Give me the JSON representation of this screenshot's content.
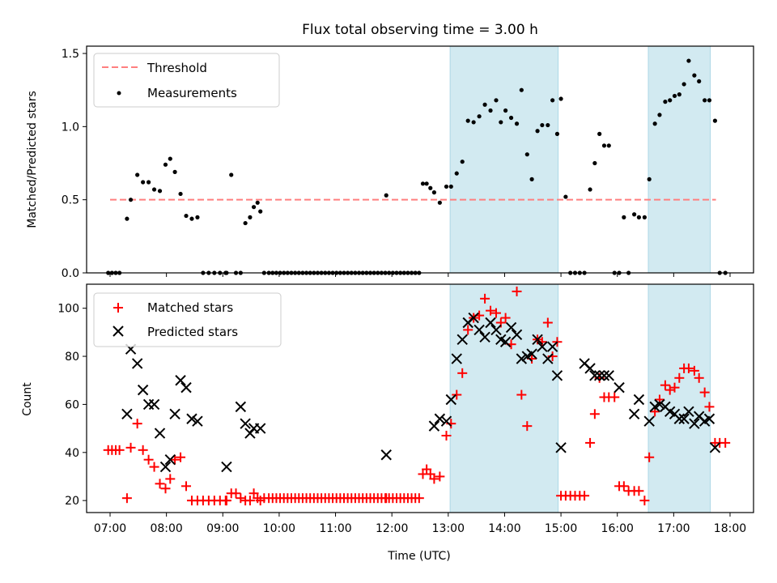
{
  "chart_data": {
    "type": "scatter",
    "title": "Flux total observing time = 3.00 h",
    "xlabel": "Time (UTC)",
    "x_unit": "hours UTC",
    "x_ticks": [
      "07:00",
      "08:00",
      "09:00",
      "10:00",
      "11:00",
      "12:00",
      "13:00",
      "14:00",
      "15:00",
      "16:00",
      "17:00",
      "18:00"
    ],
    "xlim": [
      "06:35",
      "18:25"
    ],
    "shaded_intervals": [
      [
        "13:02",
        "14:57"
      ],
      [
        "16:33",
        "17:39"
      ]
    ],
    "shade_color": "#add8e6",
    "panels": [
      {
        "ylabel": "Matched/Predicted stars",
        "ylim": [
          0,
          1.55
        ],
        "y_ticks": [
          "0.0",
          "0.5",
          "1.0",
          "1.5"
        ],
        "legend_position": "top-left",
        "threshold": {
          "name": "Threshold",
          "y": 0.5,
          "x_range": [
            "07:00",
            "17:45"
          ],
          "color": "#ff7f7f"
        },
        "measurements": {
          "name": "Measurements",
          "color": "#000000",
          "x": [
            "06:58",
            "07:02",
            "07:06",
            "07:10",
            "07:18",
            "07:22",
            "07:29",
            "07:35",
            "07:41",
            "07:47",
            "07:53",
            "07:59",
            "08:04",
            "08:09",
            "08:15",
            "08:21",
            "08:27",
            "08:33",
            "08:39",
            "08:45",
            "08:51",
            "08:57",
            "09:03",
            "09:04",
            "09:09",
            "09:14",
            "09:19",
            "09:24",
            "09:29",
            "09:33",
            "09:37",
            "09:40",
            "09:44",
            "09:49",
            "09:53",
            "09:57",
            "10:01",
            "10:05",
            "10:09",
            "10:13",
            "10:17",
            "10:21",
            "10:25",
            "10:29",
            "10:33",
            "10:37",
            "10:41",
            "10:45",
            "10:49",
            "10:53",
            "10:57",
            "11:01",
            "11:05",
            "11:09",
            "11:13",
            "11:17",
            "11:21",
            "11:25",
            "11:29",
            "11:33",
            "11:37",
            "11:41",
            "11:45",
            "11:49",
            "11:53",
            "11:54",
            "11:57",
            "12:01",
            "12:05",
            "12:09",
            "12:13",
            "12:17",
            "12:21",
            "12:25",
            "12:29",
            "12:33",
            "12:37",
            "12:41",
            "12:45",
            "12:51",
            "12:58",
            "13:03",
            "13:09",
            "13:15",
            "13:21",
            "13:27",
            "13:33",
            "13:39",
            "13:45",
            "13:51",
            "13:56",
            "14:01",
            "14:07",
            "14:13",
            "14:18",
            "14:24",
            "14:29",
            "14:35",
            "14:40",
            "14:46",
            "14:51",
            "14:56",
            "15:00",
            "15:05",
            "15:10",
            "15:15",
            "15:20",
            "15:25",
            "15:31",
            "15:36",
            "15:41",
            "15:46",
            "15:51",
            "15:57",
            "16:02",
            "16:07",
            "16:12",
            "16:18",
            "16:23",
            "16:29",
            "16:34",
            "16:40",
            "16:45",
            "16:51",
            "16:56",
            "17:01",
            "17:06",
            "17:11",
            "17:16",
            "17:22",
            "17:27",
            "17:33",
            "17:38",
            "17:44",
            "17:49",
            "17:55"
          ],
          "y": [
            0,
            0,
            0,
            0,
            0.37,
            0.5,
            0.67,
            0.62,
            0.62,
            0.57,
            0.56,
            0.74,
            0.78,
            0.69,
            0.54,
            0.39,
            0.37,
            0.38,
            0,
            0,
            0,
            0,
            0,
            0,
            0.67,
            0,
            0,
            0.34,
            0.38,
            0.45,
            0.48,
            0.42,
            0,
            0,
            0,
            0,
            0,
            0,
            0,
            0,
            0,
            0,
            0,
            0,
            0,
            0,
            0,
            0,
            0,
            0,
            0,
            0,
            0,
            0,
            0,
            0,
            0,
            0,
            0,
            0,
            0,
            0,
            0,
            0,
            0,
            0.53,
            0,
            0,
            0,
            0,
            0,
            0,
            0,
            0,
            0,
            0.61,
            0.61,
            0.58,
            0.55,
            0.48,
            0.59,
            0.59,
            0.68,
            0.76,
            1.04,
            1.03,
            1.07,
            1.15,
            1.11,
            1.18,
            1.03,
            1.11,
            1.06,
            1.02,
            1.25,
            0.81,
            0.64,
            0.97,
            1.01,
            1.01,
            1.18,
            0.95,
            1.19,
            0.52,
            0,
            0,
            0,
            0,
            0.57,
            0.75,
            0.95,
            0.87,
            0.87,
            0,
            0,
            0.38,
            0,
            0.4,
            0.38,
            0.38,
            0.64,
            1.02,
            1.08,
            1.17,
            1.18,
            1.21,
            1.22,
            1.29,
            1.45,
            1.35,
            1.31,
            1.18,
            1.18,
            1.04,
            0,
            0
          ]
        }
      },
      {
        "ylabel": "Count",
        "ylim": [
          15,
          110
        ],
        "y_ticks": [
          "20",
          "40",
          "60",
          "80",
          "100"
        ],
        "legend_position": "top-left",
        "series": [
          {
            "name": "Matched stars",
            "marker": "plus",
            "color": "#ff0000",
            "x": [
              "06:58",
              "07:02",
              "07:06",
              "07:10",
              "07:18",
              "07:22",
              "07:29",
              "07:35",
              "07:41",
              "07:47",
              "07:53",
              "07:59",
              "08:04",
              "08:09",
              "08:15",
              "08:21",
              "08:27",
              "08:33",
              "08:39",
              "08:45",
              "08:51",
              "08:57",
              "09:03",
              "09:04",
              "09:09",
              "09:14",
              "09:19",
              "09:24",
              "09:29",
              "09:33",
              "09:37",
              "09:40",
              "09:44",
              "09:49",
              "09:53",
              "09:57",
              "10:01",
              "10:05",
              "10:09",
              "10:13",
              "10:17",
              "10:21",
              "10:25",
              "10:29",
              "10:33",
              "10:37",
              "10:41",
              "10:45",
              "10:49",
              "10:53",
              "10:57",
              "11:01",
              "11:05",
              "11:09",
              "11:13",
              "11:17",
              "11:21",
              "11:25",
              "11:29",
              "11:33",
              "11:37",
              "11:41",
              "11:45",
              "11:49",
              "11:53",
              "11:54",
              "11:57",
              "12:01",
              "12:05",
              "12:09",
              "12:13",
              "12:17",
              "12:21",
              "12:25",
              "12:29",
              "12:33",
              "12:37",
              "12:41",
              "12:45",
              "12:51",
              "12:58",
              "13:03",
              "13:09",
              "13:15",
              "13:21",
              "13:27",
              "13:33",
              "13:39",
              "13:45",
              "13:51",
              "13:56",
              "14:01",
              "14:07",
              "14:13",
              "14:18",
              "14:24",
              "14:29",
              "14:35",
              "14:40",
              "14:46",
              "14:51",
              "14:56",
              "15:00",
              "15:05",
              "15:10",
              "15:15",
              "15:20",
              "15:25",
              "15:31",
              "15:36",
              "15:41",
              "15:46",
              "15:51",
              "15:57",
              "16:02",
              "16:07",
              "16:12",
              "16:18",
              "16:23",
              "16:29",
              "16:34",
              "16:40",
              "16:45",
              "16:51",
              "16:56",
              "17:01",
              "17:06",
              "17:11",
              "17:16",
              "17:22",
              "17:27",
              "17:33",
              "17:38",
              "17:44",
              "17:49",
              "17:55"
            ],
            "y": [
              41,
              41,
              41,
              41,
              21,
              42,
              52,
              41,
              37,
              34,
              27,
              25,
              29,
              37,
              38,
              26,
              20,
              20,
              20,
              20,
              20,
              20,
              20,
              20,
              23,
              23,
              21,
              20,
              20,
              23,
              21,
              20,
              21,
              21,
              21,
              21,
              21,
              21,
              21,
              21,
              21,
              21,
              21,
              21,
              21,
              21,
              21,
              21,
              21,
              21,
              21,
              21,
              21,
              21,
              21,
              21,
              21,
              21,
              21,
              21,
              21,
              21,
              21,
              21,
              21,
              21,
              21,
              21,
              21,
              21,
              21,
              21,
              21,
              21,
              21,
              31,
              33,
              31,
              29,
              30,
              47,
              52,
              64,
              73,
              91,
              96,
              97,
              104,
              99,
              98,
              94,
              96,
              85,
              107,
              64,
              51,
              79,
              87,
              86,
              94,
              80,
              86,
              22,
              22,
              22,
              22,
              22,
              22,
              44,
              56,
              71,
              63,
              63,
              63,
              26,
              26,
              24,
              24,
              24,
              20,
              38,
              57,
              62,
              68,
              66,
              67,
              71,
              75,
              75,
              74,
              71,
              65,
              59,
              44,
              44,
              44
            ]
          },
          {
            "name": "Predicted stars",
            "marker": "x",
            "color": "#000000",
            "x": [
              "07:18",
              "07:22",
              "07:29",
              "07:35",
              "07:41",
              "07:47",
              "07:53",
              "07:59",
              "08:04",
              "08:09",
              "08:15",
              "08:21",
              "08:27",
              "08:33",
              "09:04",
              "09:19",
              "09:24",
              "09:29",
              "09:33",
              "09:40",
              "11:54",
              "12:45",
              "12:51",
              "12:58",
              "13:03",
              "13:09",
              "13:15",
              "13:21",
              "13:27",
              "13:33",
              "13:39",
              "13:45",
              "13:51",
              "13:56",
              "14:01",
              "14:07",
              "14:13",
              "14:18",
              "14:24",
              "14:29",
              "14:35",
              "14:40",
              "14:46",
              "14:51",
              "14:56",
              "15:00",
              "15:25",
              "15:31",
              "15:36",
              "15:41",
              "15:46",
              "15:51",
              "16:02",
              "16:18",
              "16:23",
              "16:34",
              "16:40",
              "16:45",
              "16:51",
              "16:56",
              "17:01",
              "17:06",
              "17:11",
              "17:16",
              "17:22",
              "17:27",
              "17:33",
              "17:38",
              "17:44"
            ],
            "y": [
              56,
              83,
              77,
              66,
              60,
              60,
              48,
              34,
              37,
              56,
              70,
              67,
              54,
              53,
              34,
              59,
              52,
              48,
              50,
              50,
              39,
              51,
              54,
              53,
              62,
              79,
              87,
              94,
              96,
              91,
              88,
              94,
              91,
              87,
              86,
              92,
              89,
              79,
              80,
              81,
              87,
              84,
              79,
              84,
              72,
              42,
              77,
              75,
              72,
              72,
              72,
              72,
              67,
              56,
              62,
              53,
              59,
              60,
              59,
              57,
              56,
              54,
              54,
              57,
              52,
              55,
              53,
              54,
              42
            ]
          }
        ]
      }
    ]
  }
}
